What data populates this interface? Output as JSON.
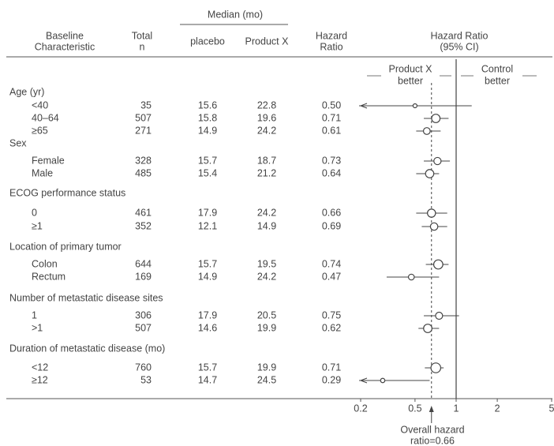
{
  "chart_data": {
    "type": "forest",
    "header": {
      "characteristic": [
        "Baseline",
        "Characteristic"
      ],
      "total": [
        "Total",
        "n"
      ],
      "median": "Median (mo)",
      "placebo": "placebo",
      "product": "Product X",
      "hr": [
        "Hazard",
        "Ratio"
      ],
      "ci": [
        "Hazard Ratio",
        "(95% CI)"
      ]
    },
    "favor_left": [
      "Product X",
      "better"
    ],
    "favor_right": [
      "Control",
      "better"
    ],
    "groups": [
      {
        "label": "Age (yr)",
        "rows": [
          {
            "label": "<40",
            "n": 35,
            "placebo": 15.6,
            "product": 22.8,
            "hr": 0.5,
            "hr_label": "0.50",
            "ci": [
              0.15,
              1.3
            ]
          },
          {
            "label": "40–64",
            "n": 507,
            "placebo": 15.8,
            "product": 19.6,
            "hr": 0.71,
            "ci": [
              0.58,
              0.88
            ]
          },
          {
            "label": "≥65",
            "n": 271,
            "placebo": 14.9,
            "product": 24.2,
            "hr": 0.61,
            "ci": [
              0.51,
              0.77
            ]
          }
        ]
      },
      {
        "label": "Sex",
        "rows": [
          {
            "label": "Female",
            "n": 328,
            "placebo": 15.7,
            "product": 18.7,
            "hr": 0.73,
            "ci": [
              0.58,
              0.9
            ]
          },
          {
            "label": "Male",
            "n": 485,
            "placebo": 15.4,
            "product": 21.2,
            "hr": 0.64,
            "ci": [
              0.51,
              0.75
            ]
          }
        ]
      },
      {
        "label": "ECOG performance status",
        "rows": [
          {
            "label": "0",
            "n": 461,
            "placebo": 17.9,
            "product": 24.2,
            "hr": 0.66,
            "ci": [
              0.51,
              0.86
            ]
          },
          {
            "label": "≥1",
            "n": 352,
            "placebo": 12.1,
            "product": 14.9,
            "hr": 0.69,
            "ci": [
              0.56,
              0.86
            ]
          }
        ]
      },
      {
        "label": "Location of primary tumor",
        "rows": [
          {
            "label": "Colon",
            "n": 644,
            "placebo": 15.7,
            "product": 19.5,
            "hr": 0.74,
            "ci": [
              0.6,
              0.88
            ]
          },
          {
            "label": "Rectum",
            "n": 169,
            "placebo": 14.9,
            "product": 24.2,
            "hr": 0.47,
            "ci": [
              0.31,
              0.75
            ]
          }
        ]
      },
      {
        "label": "Number of metastatic disease sites",
        "rows": [
          {
            "label": "1",
            "n": 306,
            "placebo": 17.9,
            "product": 20.5,
            "hr": 0.75,
            "ci": [
              0.58,
              1.05
            ]
          },
          {
            "label": ">1",
            "n": 507,
            "placebo": 14.6,
            "product": 19.9,
            "hr": 0.62,
            "ci": [
              0.53,
              0.75
            ]
          }
        ]
      },
      {
        "label": "Duration of metastatic disease (mo)",
        "rows": [
          {
            "label": "<12",
            "n": 760,
            "placebo": 15.7,
            "product": 19.9,
            "hr": 0.71,
            "ci": [
              0.59,
              0.81
            ]
          },
          {
            "label": "≥12",
            "n": 53,
            "placebo": 14.7,
            "product": 24.5,
            "hr": 0.29,
            "ci": [
              0.15,
              0.64
            ]
          }
        ]
      }
    ],
    "xscale": "log",
    "xlim": [
      0.2,
      5
    ],
    "xticks": [
      0.2,
      0.5,
      1,
      2,
      5
    ],
    "reference": 1,
    "overall_hr": 0.66,
    "overall_label": [
      "Overall hazard",
      "ratio=0.66"
    ],
    "color": "#444444"
  }
}
